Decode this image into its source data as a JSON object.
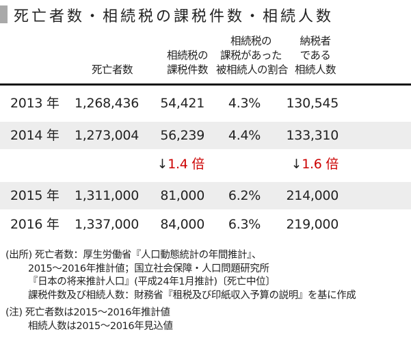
{
  "title": "死亡者数・相続税の課税件数・相続人数",
  "headers": {
    "deaths": [
      "死亡者数"
    ],
    "taxable_cases": [
      "相続税の",
      "課税件数"
    ],
    "ratio": [
      "相続税の",
      "課税があった",
      "被相続人の割合"
    ],
    "heirs": [
      "納税者",
      "である",
      "相続人数"
    ]
  },
  "rows": [
    {
      "year": "2013 年",
      "deaths": "1,268,436",
      "cases": "54,421",
      "ratio": "4.3%",
      "heirs": "130,545"
    },
    {
      "year": "2014 年",
      "deaths": "1,273,004",
      "cases": "56,239",
      "ratio": "4.4%",
      "heirs": "133,310"
    },
    {
      "year": "2015 年",
      "deaths": "1,311,000",
      "cases": "81,000",
      "ratio": "6.2%",
      "heirs": "214,000"
    },
    {
      "year": "2016 年",
      "deaths": "1,337,000",
      "cases": "84,000",
      "ratio": "6.3%",
      "heirs": "219,000"
    }
  ],
  "growth": {
    "arrow": "↓",
    "cases": "1.4 倍",
    "heirs": "1.6 倍"
  },
  "notes": {
    "source": [
      "(出所) 死亡者数：厚生労働省『人口動態統計の年間推計』、",
      "2015～2016年推計値；国立社会保障・人口問題研究所",
      "『日本の将来推計人口』(平成24年1月推計)〔死亡中位〕",
      "課税件数及び相続人数：財務省『租税及び印紙収入予算の説明』を基に作成"
    ],
    "note": [
      "(注) 死亡者数は2015～2016年推計値",
      "相続人数は2015～2016年見込値"
    ]
  },
  "colors": {
    "accent_red": "#cc0000",
    "row_gray": "#ededed",
    "title_bar": "#a9a9a9"
  }
}
